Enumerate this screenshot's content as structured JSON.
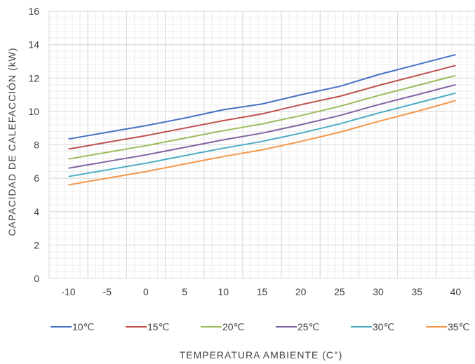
{
  "chart_data": {
    "type": "line",
    "title": "",
    "xlabel": "TEMPERATURA AMBIENTE (C°)",
    "ylabel": "CAPACIDAD DE CALEFACCIÓN (kW)",
    "categories": [
      "-10",
      "-5",
      "0",
      "5",
      "10",
      "15",
      "20",
      "25",
      "30",
      "35",
      "40"
    ],
    "ylim": [
      0,
      16
    ],
    "yticks": [
      0,
      2,
      4,
      6,
      8,
      10,
      12,
      14,
      16
    ],
    "grid": {
      "major": true,
      "minor": true
    },
    "legend": "bottom",
    "series": [
      {
        "name": "10℃",
        "color": "#4472C4",
        "values": [
          8.35,
          8.75,
          9.15,
          9.6,
          10.1,
          10.45,
          11.0,
          11.5,
          12.2,
          12.8,
          13.4
        ]
      },
      {
        "name": "15℃",
        "color": "#C0504D",
        "values": [
          7.75,
          8.15,
          8.55,
          9.0,
          9.45,
          9.85,
          10.4,
          10.9,
          11.55,
          12.15,
          12.75
        ]
      },
      {
        "name": "20℃",
        "color": "#9BBB59",
        "values": [
          7.15,
          7.55,
          7.95,
          8.4,
          8.85,
          9.25,
          9.75,
          10.3,
          10.95,
          11.55,
          12.15
        ]
      },
      {
        "name": "25℃",
        "color": "#8064A2",
        "values": [
          6.6,
          7.0,
          7.4,
          7.85,
          8.3,
          8.7,
          9.2,
          9.75,
          10.4,
          11.0,
          11.6
        ]
      },
      {
        "name": "30℃",
        "color": "#4BACC6",
        "values": [
          6.1,
          6.5,
          6.9,
          7.35,
          7.8,
          8.2,
          8.7,
          9.25,
          9.9,
          10.5,
          11.1
        ]
      },
      {
        "name": "35℃",
        "color": "#F79646",
        "values": [
          5.6,
          6.0,
          6.4,
          6.85,
          7.3,
          7.7,
          8.2,
          8.75,
          9.4,
          10.0,
          10.65
        ]
      }
    ]
  }
}
